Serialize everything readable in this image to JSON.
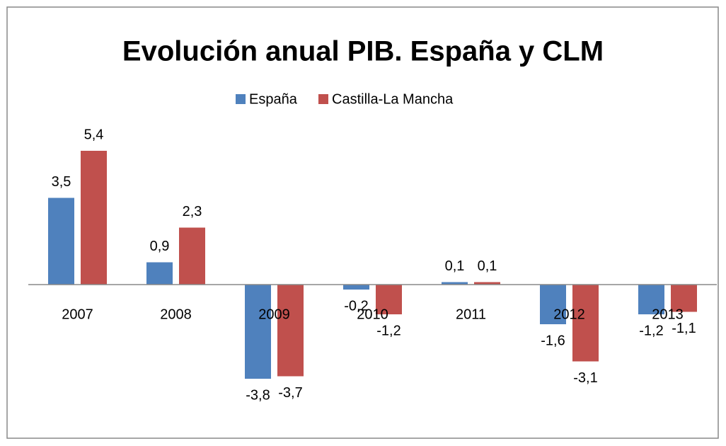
{
  "chart_data": {
    "type": "bar",
    "title": "Evolución anual PIB. España y CLM",
    "categories": [
      "2007",
      "2008",
      "2009",
      "2010",
      "2011",
      "2012",
      "2013"
    ],
    "series": [
      {
        "name": "España",
        "color": "#4f81bd",
        "values": [
          3.5,
          0.9,
          -3.8,
          -0.2,
          0.1,
          -1.6,
          -1.2
        ],
        "value_labels": [
          "3,5",
          "0,9",
          "-3,8",
          "-0,2",
          "0,1",
          "-1,6",
          "-1,2"
        ]
      },
      {
        "name": "Castilla-La Mancha",
        "color": "#c0504d",
        "values": [
          5.4,
          2.3,
          -3.7,
          -1.2,
          0.1,
          -3.1,
          -1.1
        ],
        "value_labels": [
          "5,4",
          "2,3",
          "-3,7",
          "-1,2",
          "0,1",
          "-3,1",
          "-1,1"
        ]
      }
    ],
    "legend": "top"
  }
}
